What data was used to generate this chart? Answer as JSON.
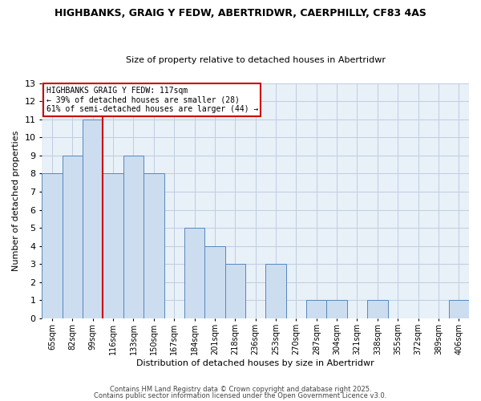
{
  "title": "HIGHBANKS, GRAIG Y FEDW, ABERTRIDWR, CAERPHILLY, CF83 4AS",
  "subtitle": "Size of property relative to detached houses in Abertridwr",
  "xlabel": "Distribution of detached houses by size in Abertridwr",
  "ylabel": "Number of detached properties",
  "bar_labels": [
    "65sqm",
    "82sqm",
    "99sqm",
    "116sqm",
    "133sqm",
    "150sqm",
    "167sqm",
    "184sqm",
    "201sqm",
    "218sqm",
    "236sqm",
    "253sqm",
    "270sqm",
    "287sqm",
    "304sqm",
    "321sqm",
    "338sqm",
    "355sqm",
    "372sqm",
    "389sqm",
    "406sqm"
  ],
  "bar_values": [
    8,
    9,
    11,
    8,
    9,
    8,
    0,
    5,
    4,
    3,
    0,
    3,
    0,
    1,
    1,
    0,
    1,
    0,
    0,
    0,
    1
  ],
  "bar_color": "#ccddf0",
  "bar_edge_color": "#5588bb",
  "vline_color": "#cc0000",
  "vline_index": 3,
  "ylim": [
    0,
    13
  ],
  "yticks": [
    0,
    1,
    2,
    3,
    4,
    5,
    6,
    7,
    8,
    9,
    10,
    11,
    12,
    13
  ],
  "annotation_title": "HIGHBANKS GRAIG Y FEDW: 117sqm",
  "annotation_line1": "← 39% of detached houses are smaller (28)",
  "annotation_line2": "61% of semi-detached houses are larger (44) →",
  "annotation_box_color": "#cc0000",
  "footer1": "Contains HM Land Registry data © Crown copyright and database right 2025.",
  "footer2": "Contains public sector information licensed under the Open Government Licence v3.0.",
  "bg_color": "#ffffff",
  "plot_bg_color": "#e8f0f8",
  "grid_color": "#c0cce0"
}
